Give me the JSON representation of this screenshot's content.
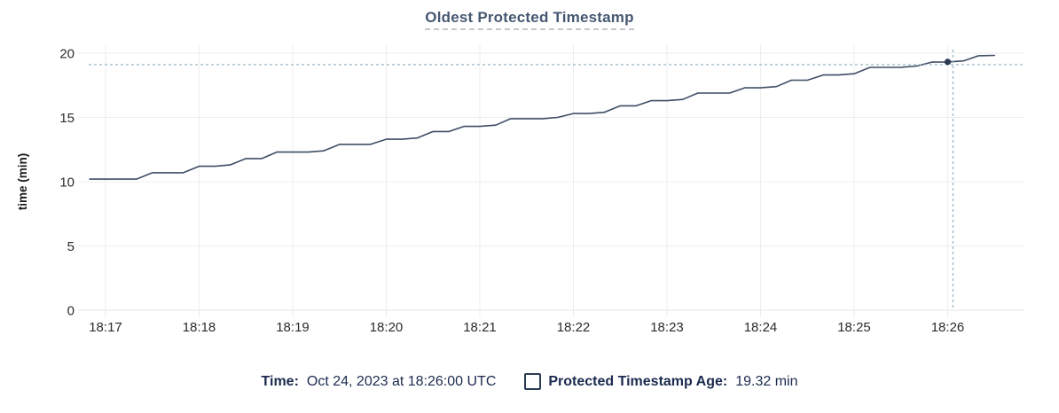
{
  "title": "Oldest Protected Timestamp",
  "y_axis": {
    "label": "time (min)",
    "ticks": [
      0,
      5,
      10,
      15,
      20
    ],
    "range": [
      0,
      20
    ]
  },
  "x_axis": {
    "ticks": [
      "18:17",
      "18:18",
      "18:19",
      "18:20",
      "18:21",
      "18:22",
      "18:23",
      "18:24",
      "18:25",
      "18:26"
    ]
  },
  "legend": {
    "time_label": "Time:",
    "time_value": "Oct 24, 2023 at 18:26:00 UTC",
    "series_label": "Protected Timestamp Age:",
    "series_value": "19.32 min",
    "checkbox_checked": false
  },
  "colors": {
    "title": "#475872",
    "line": "#3e4e64",
    "dot": "#2b3b53",
    "crosshair": "#9cb6c4",
    "grid": "#ededed",
    "axis_line": "#e4e4e4",
    "tick_text": "#2b2b2b",
    "axis_label_text": "#1a1a1a",
    "legend_text": "#1b2a4e"
  },
  "chart_data": {
    "type": "line",
    "title": "Oldest Protected Timestamp",
    "xlabel": "",
    "ylabel": "time (min)",
    "ylim": [
      0,
      20
    ],
    "x_tick_labels": [
      "18:17",
      "18:18",
      "18:19",
      "18:20",
      "18:21",
      "18:22",
      "18:23",
      "18:24",
      "18:25",
      "18:26"
    ],
    "x_minutes": [
      17,
      18,
      19,
      20,
      21,
      22,
      23,
      24,
      25,
      26
    ],
    "grid": true,
    "legend_position": "bottom",
    "series": [
      {
        "name": "Protected Timestamp Age",
        "unit": "min",
        "points": [
          [
            16.83,
            10.2
          ],
          [
            17.0,
            10.2
          ],
          [
            17.17,
            10.2
          ],
          [
            17.33,
            10.2
          ],
          [
            17.5,
            10.7
          ],
          [
            17.67,
            10.7
          ],
          [
            17.83,
            10.7
          ],
          [
            18.0,
            11.2
          ],
          [
            18.17,
            11.2
          ],
          [
            18.33,
            11.3
          ],
          [
            18.5,
            11.8
          ],
          [
            18.67,
            11.8
          ],
          [
            18.83,
            12.3
          ],
          [
            19.0,
            12.3
          ],
          [
            19.17,
            12.3
          ],
          [
            19.33,
            12.4
          ],
          [
            19.5,
            12.9
          ],
          [
            19.67,
            12.9
          ],
          [
            19.83,
            12.9
          ],
          [
            20.0,
            13.3
          ],
          [
            20.17,
            13.3
          ],
          [
            20.33,
            13.4
          ],
          [
            20.5,
            13.9
          ],
          [
            20.67,
            13.9
          ],
          [
            20.83,
            14.3
          ],
          [
            21.0,
            14.3
          ],
          [
            21.17,
            14.4
          ],
          [
            21.33,
            14.9
          ],
          [
            21.5,
            14.9
          ],
          [
            21.67,
            14.9
          ],
          [
            21.83,
            15.0
          ],
          [
            22.0,
            15.3
          ],
          [
            22.17,
            15.3
          ],
          [
            22.33,
            15.4
          ],
          [
            22.5,
            15.9
          ],
          [
            22.67,
            15.9
          ],
          [
            22.83,
            16.3
          ],
          [
            23.0,
            16.3
          ],
          [
            23.17,
            16.4
          ],
          [
            23.33,
            16.9
          ],
          [
            23.5,
            16.9
          ],
          [
            23.67,
            16.9
          ],
          [
            23.83,
            17.3
          ],
          [
            24.0,
            17.3
          ],
          [
            24.17,
            17.4
          ],
          [
            24.33,
            17.9
          ],
          [
            24.5,
            17.9
          ],
          [
            24.67,
            18.3
          ],
          [
            24.83,
            18.3
          ],
          [
            25.0,
            18.4
          ],
          [
            25.17,
            18.9
          ],
          [
            25.33,
            18.9
          ],
          [
            25.5,
            18.9
          ],
          [
            25.67,
            19.0
          ],
          [
            25.83,
            19.3
          ],
          [
            26.0,
            19.32
          ],
          [
            26.17,
            19.4
          ],
          [
            26.33,
            19.8
          ],
          [
            26.5,
            19.83
          ]
        ]
      }
    ],
    "highlight_point": {
      "x_minute": 26.0,
      "x_label": "18:26:00",
      "y": 19.32
    },
    "crosshair": {
      "time": "18:26:00 UTC",
      "value_min": 19.32
    }
  }
}
